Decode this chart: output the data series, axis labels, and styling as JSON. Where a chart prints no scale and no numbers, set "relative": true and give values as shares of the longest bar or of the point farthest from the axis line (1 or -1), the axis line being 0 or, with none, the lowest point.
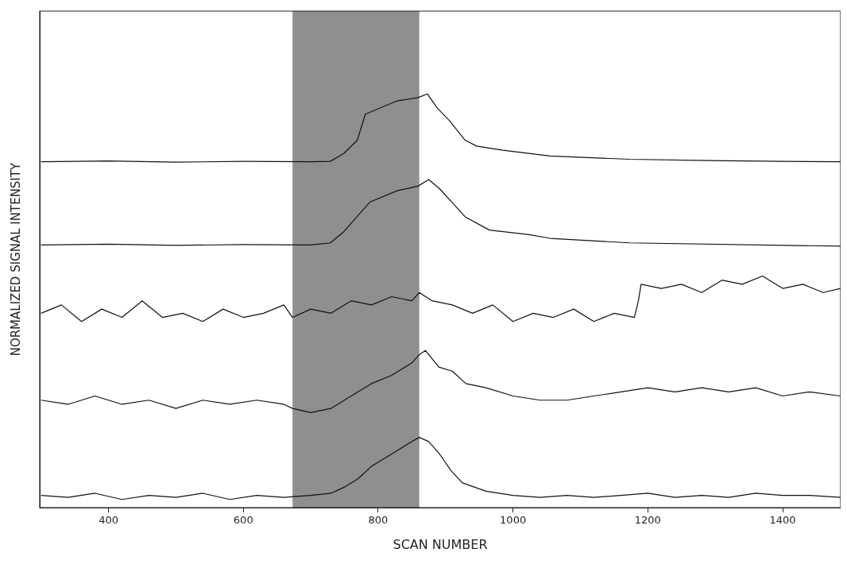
{
  "chart_data": {
    "type": "line",
    "relative": true,
    "xlabel": "SCAN NUMBER",
    "ylabel": "NORMALIZED SIGNAL INTENSITY",
    "xlim": [
      298,
      1486
    ],
    "xticks": [
      400,
      600,
      800,
      1000,
      1200,
      1400
    ],
    "grid": false,
    "legend": false,
    "marker": "none",
    "line_style": "solid",
    "bands": [
      {
        "axis": "x",
        "from": 673,
        "to": 861,
        "color": "#444444"
      }
    ],
    "series": [
      {
        "color": "#111111",
        "x": [
          300,
          400,
          500,
          600,
          700,
          729,
          749,
          769,
          781,
          828,
          859,
          873,
          887,
          906,
          929,
          946,
          985,
          1055,
          1173,
          1291,
          1400,
          1486
        ],
        "values": [
          0.836,
          0.838,
          0.835,
          0.837,
          0.836,
          0.837,
          0.856,
          0.888,
          0.951,
          0.983,
          0.991,
          1.0,
          0.967,
          0.935,
          0.888,
          0.874,
          0.864,
          0.85,
          0.842,
          0.839,
          0.837,
          0.836
        ]
      },
      {
        "color": "#111111",
        "x": [
          300,
          400,
          500,
          600,
          700,
          729,
          749,
          788,
          828,
          859,
          875,
          891,
          914,
          929,
          965,
          1024,
          1055,
          1173,
          1486
        ],
        "values": [
          0.635,
          0.637,
          0.634,
          0.636,
          0.635,
          0.64,
          0.667,
          0.739,
          0.766,
          0.777,
          0.793,
          0.771,
          0.73,
          0.703,
          0.671,
          0.66,
          0.651,
          0.64,
          0.632
        ]
      },
      {
        "color": "#111111",
        "x": [
          300,
          330,
          360,
          390,
          420,
          450,
          480,
          510,
          540,
          570,
          600,
          630,
          660,
          673,
          700,
          730,
          760,
          790,
          820,
          850,
          861,
          880,
          910,
          940,
          970,
          1000,
          1030,
          1060,
          1090,
          1120,
          1150,
          1180,
          1186,
          1190,
          1220,
          1250,
          1280,
          1310,
          1340,
          1370,
          1400,
          1430,
          1460,
          1486
        ],
        "values": [
          0.47,
          0.49,
          0.45,
          0.48,
          0.46,
          0.5,
          0.46,
          0.47,
          0.45,
          0.48,
          0.46,
          0.47,
          0.49,
          0.46,
          0.48,
          0.47,
          0.5,
          0.49,
          0.51,
          0.5,
          0.52,
          0.5,
          0.49,
          0.47,
          0.49,
          0.45,
          0.47,
          0.46,
          0.48,
          0.45,
          0.47,
          0.46,
          0.5,
          0.54,
          0.53,
          0.54,
          0.52,
          0.55,
          0.54,
          0.56,
          0.53,
          0.54,
          0.52,
          0.53
        ]
      },
      {
        "color": "#111111",
        "x": [
          300,
          340,
          380,
          420,
          460,
          500,
          540,
          580,
          620,
          660,
          673,
          700,
          730,
          760,
          790,
          820,
          850,
          861,
          870,
          890,
          910,
          930,
          960,
          1000,
          1040,
          1080,
          1120,
          1160,
          1200,
          1240,
          1280,
          1320,
          1360,
          1400,
          1440,
          1486
        ],
        "values": [
          0.26,
          0.25,
          0.27,
          0.25,
          0.26,
          0.24,
          0.26,
          0.25,
          0.26,
          0.25,
          0.24,
          0.23,
          0.24,
          0.27,
          0.3,
          0.32,
          0.35,
          0.37,
          0.38,
          0.34,
          0.33,
          0.3,
          0.29,
          0.27,
          0.26,
          0.26,
          0.27,
          0.28,
          0.29,
          0.28,
          0.29,
          0.28,
          0.29,
          0.27,
          0.28,
          0.27
        ]
      },
      {
        "color": "#111111",
        "x": [
          300,
          340,
          380,
          420,
          460,
          500,
          540,
          580,
          620,
          660,
          700,
          730,
          750,
          770,
          790,
          810,
          830,
          850,
          861,
          875,
          891,
          908,
          925,
          960,
          1000,
          1040,
          1080,
          1120,
          1160,
          1200,
          1240,
          1280,
          1320,
          1360,
          1400,
          1440,
          1486
        ],
        "values": [
          0.03,
          0.025,
          0.035,
          0.02,
          0.03,
          0.025,
          0.035,
          0.02,
          0.03,
          0.025,
          0.03,
          0.035,
          0.05,
          0.07,
          0.1,
          0.12,
          0.14,
          0.16,
          0.17,
          0.16,
          0.13,
          0.09,
          0.06,
          0.04,
          0.03,
          0.025,
          0.03,
          0.025,
          0.03,
          0.035,
          0.025,
          0.03,
          0.025,
          0.035,
          0.03,
          0.03,
          0.025
        ]
      }
    ]
  }
}
